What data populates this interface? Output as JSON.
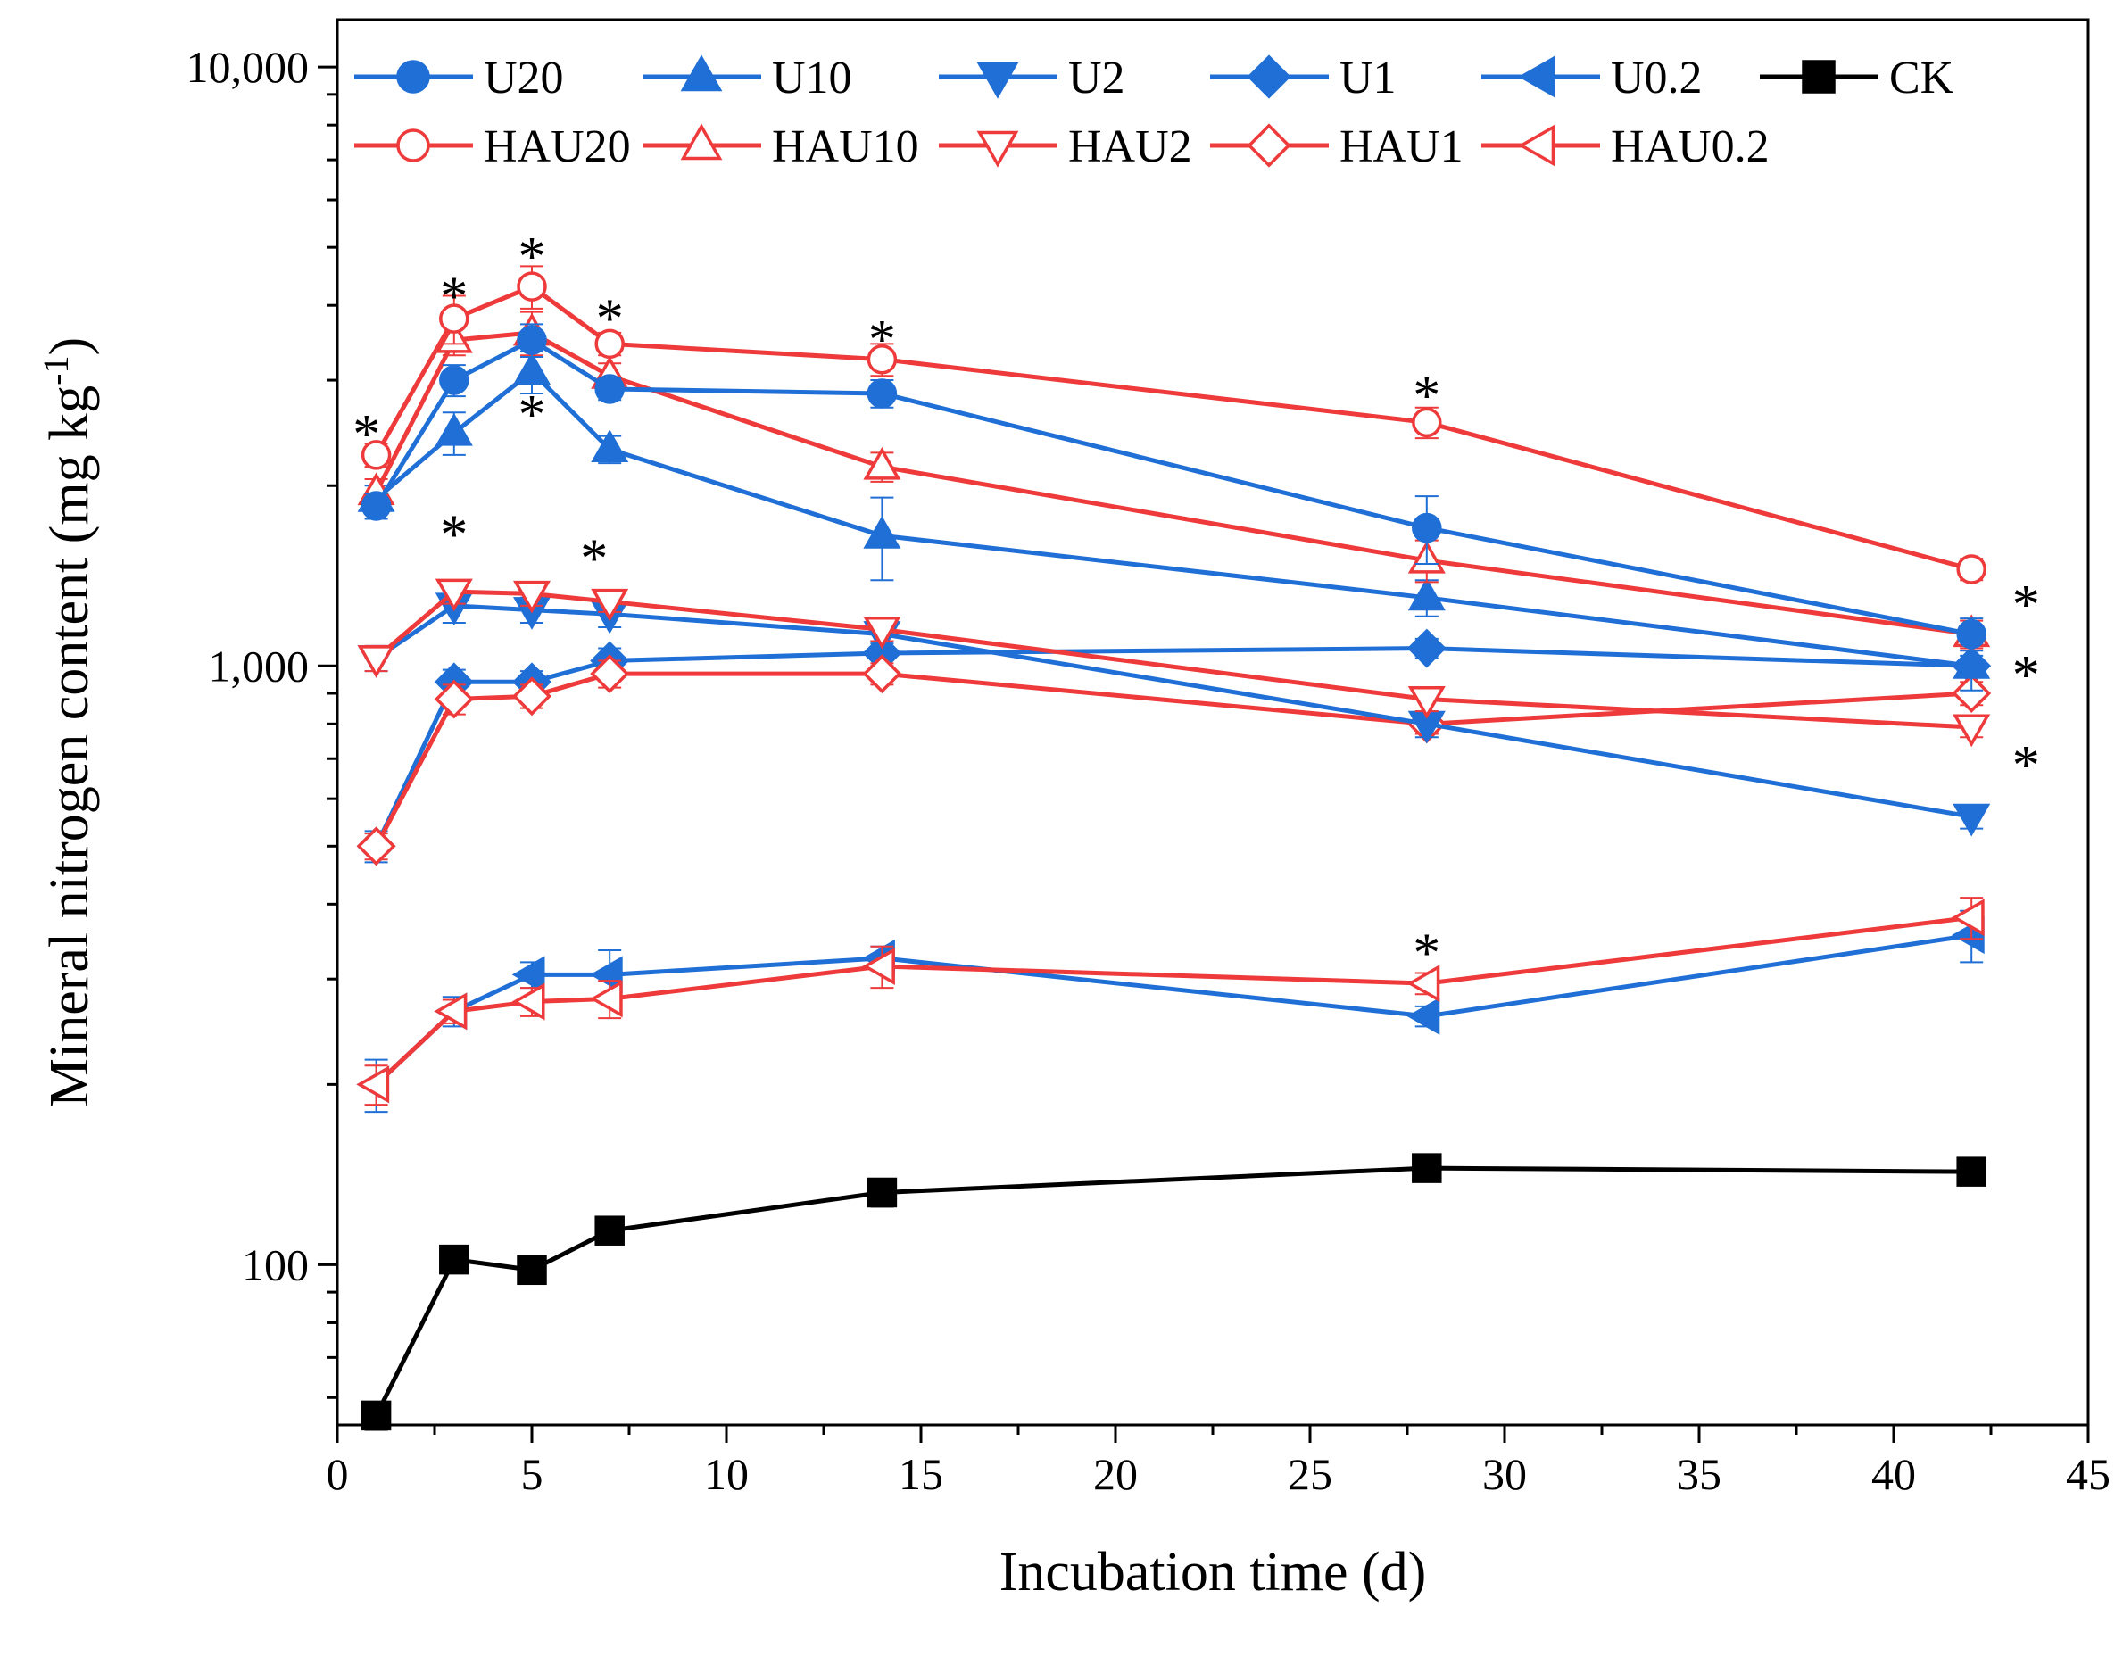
{
  "chart_data": {
    "type": "line",
    "title": "",
    "xlabel": "Incubation time (d)",
    "ylabel_main": "Mineral nitrogen content (mg kg",
    "ylabel_sup": "-1",
    "ylabel_close": ")",
    "xlim": [
      0,
      45
    ],
    "ylim": [
      54,
      12000
    ],
    "yscale": "log",
    "xticks": [
      0,
      5,
      10,
      15,
      20,
      25,
      30,
      35,
      40,
      45
    ],
    "xtick_labels": [
      "0",
      "5",
      "10",
      "15",
      "20",
      "25",
      "30",
      "35",
      "40",
      "45"
    ],
    "yticks": [
      100,
      1000,
      10000
    ],
    "ytick_labels": [
      "100",
      "1,000",
      "10,000"
    ],
    "grid": false,
    "legend_position": "top",
    "colors": {
      "blue": "#1f6fd6",
      "red": "#ee3a3a",
      "black": "#000000"
    },
    "x": [
      1,
      3,
      5,
      7,
      14,
      28,
      42
    ],
    "series": [
      {
        "name": "U20",
        "color": "blue",
        "marker": "circle",
        "filled": true,
        "values": [
          1850,
          3000,
          3500,
          2900,
          2850,
          1700,
          1130
        ],
        "err": [
          90,
          180,
          220,
          120,
          150,
          220,
          70
        ]
      },
      {
        "name": "U10",
        "color": "blue",
        "marker": "triangle-up",
        "filled": true,
        "values": [
          1900,
          2450,
          3100,
          2300,
          1650,
          1300,
          1000
        ],
        "err": [
          100,
          200,
          250,
          120,
          260,
          90,
          90
        ]
      },
      {
        "name": "U2",
        "color": "blue",
        "marker": "triangle-down",
        "filled": true,
        "values": [
          1030,
          1260,
          1240,
          1220,
          1130,
          800,
          560
        ],
        "err": [
          50,
          80,
          60,
          60,
          40,
          40,
          25
        ]
      },
      {
        "name": "U1",
        "color": "blue",
        "marker": "diamond",
        "filled": true,
        "values": [
          500,
          940,
          940,
          1020,
          1050,
          1070,
          1000
        ],
        "err": [
          30,
          45,
          40,
          50,
          50,
          40,
          40
        ]
      },
      {
        "name": "U0.2",
        "color": "blue",
        "marker": "triangle-left",
        "filled": true,
        "values": [
          200,
          265,
          305,
          305,
          325,
          260,
          355
        ],
        "err": [
          20,
          15,
          15,
          30,
          15,
          10,
          35
        ]
      },
      {
        "name": "CK",
        "color": "black",
        "marker": "square",
        "filled": true,
        "values": [
          56,
          102,
          98,
          114,
          132,
          145,
          143
        ],
        "err": [
          3,
          4,
          4,
          4,
          7,
          5,
          4
        ]
      },
      {
        "name": "HAU20",
        "color": "red",
        "marker": "circle",
        "filled": false,
        "values": [
          2250,
          3800,
          4300,
          3450,
          3250,
          2550,
          1450
        ],
        "err": [
          100,
          350,
          350,
          150,
          200,
          150,
          60
        ]
      },
      {
        "name": "HAU10",
        "color": "red",
        "marker": "triangle-up",
        "filled": false,
        "values": [
          1950,
          3500,
          3600,
          3050,
          2150,
          1500,
          1130
        ],
        "err": [
          100,
          200,
          300,
          150,
          120,
          120,
          60
        ]
      },
      {
        "name": "HAU2",
        "color": "red",
        "marker": "triangle-down",
        "filled": false,
        "values": [
          1030,
          1330,
          1320,
          1280,
          1150,
          880,
          790
        ],
        "err": [
          50,
          60,
          60,
          50,
          50,
          40,
          30
        ]
      },
      {
        "name": "HAU1",
        "color": "red",
        "marker": "diamond",
        "filled": false,
        "values": [
          500,
          880,
          890,
          970,
          970,
          800,
          900
        ],
        "err": [
          25,
          50,
          40,
          50,
          40,
          30,
          40
        ]
      },
      {
        "name": "HAU0.2",
        "color": "red",
        "marker": "triangle-left",
        "filled": false,
        "values": [
          200,
          265,
          275,
          278,
          315,
          295,
          380
        ],
        "err": [
          15,
          12,
          15,
          20,
          25,
          12,
          30
        ]
      }
    ],
    "annotations": [
      {
        "text": "*",
        "x": 0.75,
        "y": 2500
      },
      {
        "text": "*",
        "x": 3,
        "y": 4250
      },
      {
        "text": "*",
        "x": 5,
        "y": 4950
      },
      {
        "text": "*",
        "x": 7,
        "y": 3900
      },
      {
        "text": "*",
        "x": 14,
        "y": 3600
      },
      {
        "text": "*",
        "x": 28,
        "y": 2900
      },
      {
        "text": "*",
        "x": 3,
        "y": 1700
      },
      {
        "text": "*",
        "x": 5,
        "y": 2700
      },
      {
        "text": "*",
        "x": 6.6,
        "y": 1550
      },
      {
        "text": "*",
        "x": 43.4,
        "y": 1300
      },
      {
        "text": "*",
        "x": 43.4,
        "y": 990
      },
      {
        "text": "*",
        "x": 43.4,
        "y": 700
      },
      {
        "text": "*",
        "x": 28,
        "y": 340
      }
    ]
  }
}
